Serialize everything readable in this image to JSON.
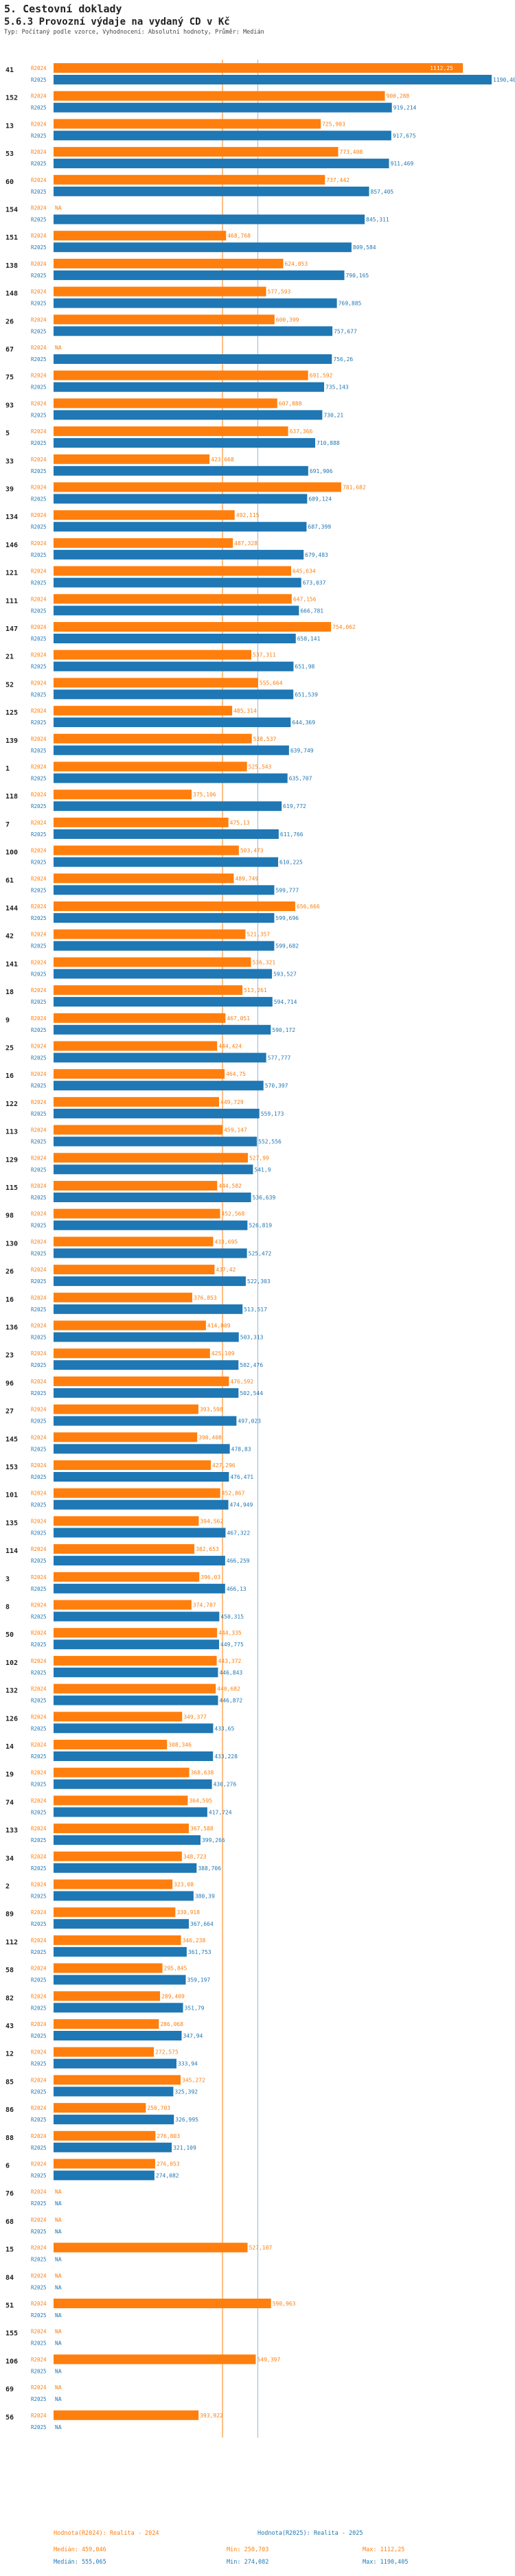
{
  "header": {
    "section": "5. Cestovní doklady",
    "title": "5.6.3 Provozní výdaje na vydaný CD v Kč",
    "subtitle": "Typ: Počítaný podle vzorce, Vyhodnocení: Absolutní hodnoty, Průměr: Medián"
  },
  "colors": {
    "r2024": "#ff7f0e",
    "r2025": "#1f77b4",
    "line": "#9ab6d6"
  },
  "legend": {
    "col1": {
      "title": "Hodnota(R2024): Realita - 2024",
      "median": "Medián: 459,046"
    },
    "col2": {
      "min": "Min: 250,703",
      "max": "Max: 1112,25"
    },
    "col3": {
      "title": "Hodnota(R2025): Realita - 2025",
      "median": "Medián: 555,065"
    },
    "col4": {
      "min": "Min: 274,082",
      "max": "Max: 1190,405"
    }
  },
  "chart_data": {
    "type": "bar",
    "orientation": "horizontal",
    "title": "5.6.3 Provozní výdaje na vydaný CD v Kč",
    "series_names": [
      "R2024",
      "R2025"
    ],
    "xlim": [
      0,
      1190.405
    ],
    "medians": {
      "R2024": 459.046,
      "R2025": 555.065
    },
    "rows": [
      {
        "id": "41",
        "r2024": 1112.25,
        "t2024": "1112,25",
        "r2025": 1190.405,
        "t2025": "1190,405"
      },
      {
        "id": "152",
        "r2024": 900.288,
        "t2024": "900,288",
        "r2025": 919.214,
        "t2025": "919,214"
      },
      {
        "id": "13",
        "r2024": 725.903,
        "t2024": "725,903",
        "r2025": 917.675,
        "t2025": "917,675"
      },
      {
        "id": "53",
        "r2024": 773.408,
        "t2024": "773,408",
        "r2025": 911.469,
        "t2025": "911,469"
      },
      {
        "id": "60",
        "r2024": 737.442,
        "t2024": "737,442",
        "r2025": 857.405,
        "t2025": "857,405"
      },
      {
        "id": "154",
        "r2024": null,
        "t2024": "NA",
        "r2025": 845.311,
        "t2025": "845,311"
      },
      {
        "id": "151",
        "r2024": 468.768,
        "t2024": "468,768",
        "r2025": 809.584,
        "t2025": "809,584"
      },
      {
        "id": "138",
        "r2024": 624.053,
        "t2024": "624,053",
        "r2025": 790.165,
        "t2025": "790,165"
      },
      {
        "id": "148",
        "r2024": 577.593,
        "t2024": "577,593",
        "r2025": 769.885,
        "t2025": "769,885"
      },
      {
        "id": "26",
        "r2024": 600.399,
        "t2024": "600,399",
        "r2025": 757.677,
        "t2025": "757,677"
      },
      {
        "id": "67",
        "r2024": null,
        "t2024": "NA",
        "r2025": 756.26,
        "t2025": "756,26"
      },
      {
        "id": "75",
        "r2024": 691.592,
        "t2024": "691,592",
        "r2025": 735.143,
        "t2025": "735,143"
      },
      {
        "id": "93",
        "r2024": 607.888,
        "t2024": "607,888",
        "r2025": 730.21,
        "t2025": "730,21"
      },
      {
        "id": "5",
        "r2024": 637.366,
        "t2024": "637,366",
        "r2025": 710.888,
        "t2025": "710,888"
      },
      {
        "id": "33",
        "r2024": 423.668,
        "t2024": "423,668",
        "r2025": 691.906,
        "t2025": "691,906"
      },
      {
        "id": "39",
        "r2024": 781.682,
        "t2024": "781,682",
        "r2025": 689.124,
        "t2025": "689,124"
      },
      {
        "id": "134",
        "r2024": 492.115,
        "t2024": "492,115",
        "r2025": 687.399,
        "t2025": "687,399"
      },
      {
        "id": "146",
        "r2024": 487.328,
        "t2024": "487,328",
        "r2025": 679.483,
        "t2025": "679,483"
      },
      {
        "id": "121",
        "r2024": 645.634,
        "t2024": "645,634",
        "r2025": 673.037,
        "t2025": "673,037"
      },
      {
        "id": "111",
        "r2024": 647.156,
        "t2024": "647,156",
        "r2025": 666.781,
        "t2025": "666,781"
      },
      {
        "id": "147",
        "r2024": 754.062,
        "t2024": "754,062",
        "r2025": 658.141,
        "t2025": "658,141"
      },
      {
        "id": "21",
        "r2024": 537.311,
        "t2024": "537,311",
        "r2025": 651.98,
        "t2025": "651,98"
      },
      {
        "id": "52",
        "r2024": 555.664,
        "t2024": "555,664",
        "r2025": 651.539,
        "t2025": "651,539"
      },
      {
        "id": "125",
        "r2024": 485.314,
        "t2024": "485,314",
        "r2025": 644.369,
        "t2025": "644,369"
      },
      {
        "id": "139",
        "r2024": 538.537,
        "t2024": "538,537",
        "r2025": 639.749,
        "t2025": "639,749"
      },
      {
        "id": "1",
        "r2024": 525.543,
        "t2024": "525,543",
        "r2025": 635.707,
        "t2025": "635,707"
      },
      {
        "id": "118",
        "r2024": 375.106,
        "t2024": "375,106",
        "r2025": 619.772,
        "t2025": "619,772"
      },
      {
        "id": "7",
        "r2024": 475.13,
        "t2024": "475,13",
        "r2025": 611.766,
        "t2025": "611,766"
      },
      {
        "id": "100",
        "r2024": 503.473,
        "t2024": "503,473",
        "r2025": 610.225,
        "t2025": "610,225"
      },
      {
        "id": "61",
        "r2024": 489.749,
        "t2024": "489,749",
        "r2025": 599.777,
        "t2025": "599,777"
      },
      {
        "id": "144",
        "r2024": 656.666,
        "t2024": "656,666",
        "r2025": 599.696,
        "t2025": "599,696"
      },
      {
        "id": "42",
        "r2024": 521.357,
        "t2024": "521,357",
        "r2025": 599.682,
        "t2025": "599,682"
      },
      {
        "id": "141",
        "r2024": 536.321,
        "t2024": "536,321",
        "r2025": 593.527,
        "t2025": "593,527"
      },
      {
        "id": "18",
        "r2024": 513.261,
        "t2024": "513,261",
        "r2025": 594.714,
        "t2025": "594,714"
      },
      {
        "id": "9",
        "r2024": 467.051,
        "t2024": "467,051",
        "r2025": 590.172,
        "t2025": "590,172"
      },
      {
        "id": "25",
        "r2024": 444.424,
        "t2024": "444,424",
        "r2025": 577.777,
        "t2025": "577,777"
      },
      {
        "id": "16",
        "r2024": 464.75,
        "t2024": "464,75",
        "r2025": 570.397,
        "t2025": "570,397"
      },
      {
        "id": "122",
        "r2024": 449.729,
        "t2024": "449,729",
        "r2025": 559.173,
        "t2025": "559,173"
      },
      {
        "id": "113",
        "r2024": 459.147,
        "t2024": "459,147",
        "r2025": 552.556,
        "t2025": "552,556"
      },
      {
        "id": "129",
        "r2024": 527.99,
        "t2024": "527,99",
        "r2025": 541.9,
        "t2025": "541,9"
      },
      {
        "id": "115",
        "r2024": 444.582,
        "t2024": "444,582",
        "r2025": 536.639,
        "t2025": "536,639"
      },
      {
        "id": "98",
        "r2024": 452.568,
        "t2024": "452,568",
        "r2025": 526.819,
        "t2025": "526,819"
      },
      {
        "id": "130",
        "r2024": 433.695,
        "t2024": "433,695",
        "r2025": 525.472,
        "t2025": "525,472"
      },
      {
        "id": "26",
        "r2024": 437.42,
        "t2024": "437,42",
        "r2025": 522.303,
        "t2025": "522,303"
      },
      {
        "id": "16",
        "r2024": 376.853,
        "t2024": "376,853",
        "r2025": 513.517,
        "t2025": "513,517"
      },
      {
        "id": "136",
        "r2024": 414.009,
        "t2024": "414,009",
        "r2025": 503.313,
        "t2025": "503,313"
      },
      {
        "id": "23",
        "r2024": 425.109,
        "t2024": "425,109",
        "r2025": 502.476,
        "t2025": "502,476"
      },
      {
        "id": "96",
        "r2024": 476.592,
        "t2024": "476,592",
        "r2025": 502.544,
        "t2025": "502,544"
      },
      {
        "id": "27",
        "r2024": 393.598,
        "t2024": "393,598",
        "r2025": 497.023,
        "t2025": "497,023"
      },
      {
        "id": "145",
        "r2024": 390.408,
        "t2024": "390,408",
        "r2025": 478.83,
        "t2025": "478,83"
      },
      {
        "id": "153",
        "r2024": 427.296,
        "t2024": "427,296",
        "r2025": 476.471,
        "t2025": "476,471"
      },
      {
        "id": "101",
        "r2024": 452.867,
        "t2024": "452,867",
        "r2025": 474.949,
        "t2025": "474,949"
      },
      {
        "id": "135",
        "r2024": 394.562,
        "t2024": "394,562",
        "r2025": 467.322,
        "t2025": "467,322"
      },
      {
        "id": "114",
        "r2024": 382.653,
        "t2024": "382,653",
        "r2025": 466.259,
        "t2025": "466,259"
      },
      {
        "id": "3",
        "r2024": 396.03,
        "t2024": "396,03",
        "r2025": 466.13,
        "t2025": "466,13"
      },
      {
        "id": "8",
        "r2024": 374.787,
        "t2024": "374,787",
        "r2025": 450.315,
        "t2025": "450,315"
      },
      {
        "id": "50",
        "r2024": 444.335,
        "t2024": "444,335",
        "r2025": 449.775,
        "t2025": "449,775"
      },
      {
        "id": "102",
        "r2024": 443.372,
        "t2024": "443,372",
        "r2025": 446.843,
        "t2025": "446,843"
      },
      {
        "id": "132",
        "r2024": 440.682,
        "t2024": "440,682",
        "r2025": 446.872,
        "t2025": "446,872"
      },
      {
        "id": "126",
        "r2024": 349.377,
        "t2024": "349,377",
        "r2025": 433.65,
        "t2025": "433,65"
      },
      {
        "id": "14",
        "r2024": 308.346,
        "t2024": "308,346",
        "r2025": 433.228,
        "t2025": "433,228"
      },
      {
        "id": "19",
        "r2024": 368.638,
        "t2024": "368,638",
        "r2025": 430.276,
        "t2025": "430,276"
      },
      {
        "id": "74",
        "r2024": 364.595,
        "t2024": "364,595",
        "r2025": 417.724,
        "t2025": "417,724"
      },
      {
        "id": "133",
        "r2024": 367.588,
        "t2024": "367,588",
        "r2025": 399.266,
        "t2025": "399,266"
      },
      {
        "id": "34",
        "r2024": 348.723,
        "t2024": "348,723",
        "r2025": 388.706,
        "t2025": "388,706"
      },
      {
        "id": "2",
        "r2024": 323.08,
        "t2024": "323,08",
        "r2025": 380.39,
        "t2025": "380,39"
      },
      {
        "id": "89",
        "r2024": 330.918,
        "t2024": "330,918",
        "r2025": 367.664,
        "t2025": "367,664"
      },
      {
        "id": "112",
        "r2024": 346.238,
        "t2024": "346,238",
        "r2025": 361.753,
        "t2025": "361,753"
      },
      {
        "id": "58",
        "r2024": 295.845,
        "t2024": "295,845",
        "r2025": 359.197,
        "t2025": "359,197"
      },
      {
        "id": "82",
        "r2024": 289.409,
        "t2024": "289,409",
        "r2025": 351.79,
        "t2025": "351,79"
      },
      {
        "id": "43",
        "r2024": 286.068,
        "t2024": "286,068",
        "r2025": 347.94,
        "t2025": "347,94"
      },
      {
        "id": "12",
        "r2024": 272.575,
        "t2024": "272,575",
        "r2025": 333.94,
        "t2025": "333,94"
      },
      {
        "id": "85",
        "r2024": 345.272,
        "t2024": "345,272",
        "r2025": 325.392,
        "t2025": "325,392"
      },
      {
        "id": "86",
        "r2024": 250.703,
        "t2024": "250,703",
        "r2025": 326.995,
        "t2025": "326,995"
      },
      {
        "id": "88",
        "r2024": 276.803,
        "t2024": "276,803",
        "r2025": 321.109,
        "t2025": "321,109"
      },
      {
        "id": "6",
        "r2024": 276.053,
        "t2024": "276,053",
        "r2025": 274.082,
        "t2025": "274,082"
      },
      {
        "id": "76",
        "r2024": null,
        "t2024": "NA",
        "r2025": null,
        "t2025": "NA"
      },
      {
        "id": "68",
        "r2024": null,
        "t2024": "NA",
        "r2025": null,
        "t2025": "NA"
      },
      {
        "id": "15",
        "r2024": 527.107,
        "t2024": "527,107",
        "r2025": null,
        "t2025": "NA"
      },
      {
        "id": "84",
        "r2024": null,
        "t2024": "NA",
        "r2025": null,
        "t2025": "NA"
      },
      {
        "id": "51",
        "r2024": 590.963,
        "t2024": "590,963",
        "r2025": null,
        "t2025": "NA"
      },
      {
        "id": "155",
        "r2024": null,
        "t2024": "NA",
        "r2025": null,
        "t2025": "NA"
      },
      {
        "id": "106",
        "r2024": 549.397,
        "t2024": "549,397",
        "r2025": null,
        "t2025": "NA"
      },
      {
        "id": "69",
        "r2024": null,
        "t2024": "NA",
        "r2025": null,
        "t2025": "NA"
      },
      {
        "id": "56",
        "r2024": 393.922,
        "t2024": "393,922",
        "r2025": null,
        "t2025": "NA"
      }
    ]
  }
}
